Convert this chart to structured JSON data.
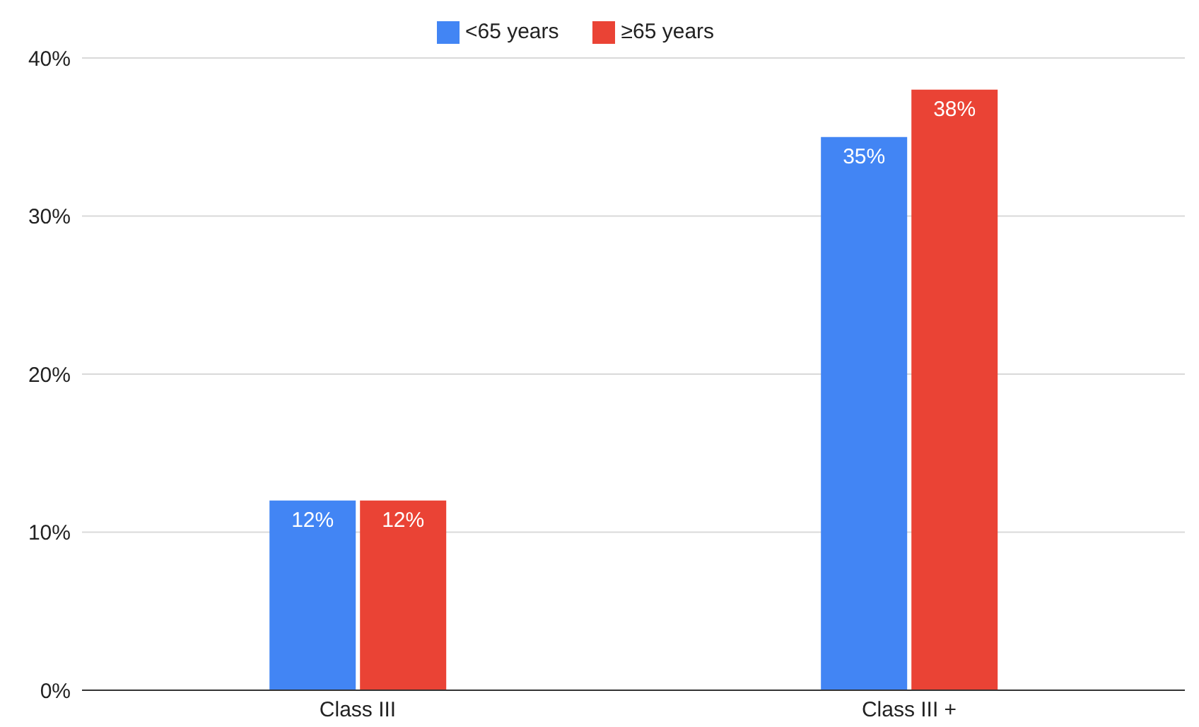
{
  "chart_data": {
    "type": "bar",
    "categories": [
      "Class III",
      "Class III +"
    ],
    "series": [
      {
        "name": "<65 years",
        "color": "#4285f4",
        "values": [
          12,
          35
        ],
        "value_labels": [
          "12%",
          "35%"
        ]
      },
      {
        "name": "≥65 years",
        "color": "#ea4335",
        "values": [
          12,
          38
        ],
        "value_labels": [
          "12%",
          "38%"
        ]
      }
    ],
    "ylim": [
      0,
      40
    ],
    "yticks": [
      {
        "value": 0,
        "label": "0%"
      },
      {
        "value": 10,
        "label": "10%"
      },
      {
        "value": 20,
        "label": "20%"
      },
      {
        "value": 30,
        "label": "30%"
      },
      {
        "value": 40,
        "label": "40%"
      }
    ],
    "grid": "y",
    "legend": "top"
  }
}
